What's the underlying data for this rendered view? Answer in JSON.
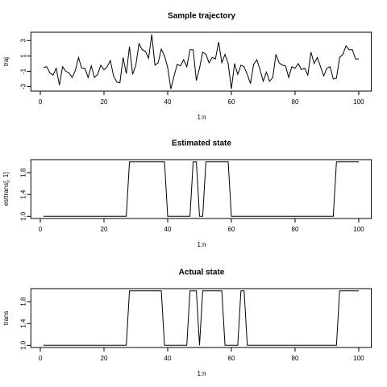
{
  "chart_data": [
    {
      "type": "line",
      "title": "Sample trajectory",
      "x_label": "1:n",
      "y_label": "traj",
      "color": "#000000",
      "x": [
        1,
        2,
        3,
        4,
        5,
        6,
        7,
        8,
        9,
        10,
        11,
        12,
        13,
        14,
        15,
        16,
        17,
        18,
        19,
        20,
        21,
        22,
        23,
        24,
        25,
        26,
        27,
        28,
        29,
        30,
        31,
        32,
        33,
        34,
        35,
        36,
        37,
        38,
        39,
        40,
        41,
        42,
        43,
        44,
        45,
        46,
        47,
        48,
        49,
        50,
        51,
        52,
        53,
        54,
        55,
        56,
        57,
        58,
        59,
        60,
        61,
        62,
        63,
        64,
        65,
        66,
        67,
        68,
        69,
        70,
        71,
        72,
        73,
        74,
        75,
        76,
        77,
        78,
        79,
        80,
        81,
        82,
        83,
        84,
        85,
        86,
        87,
        88,
        89,
        90,
        91,
        92,
        93,
        94,
        95,
        96,
        97,
        98,
        99,
        100
      ],
      "values": [
        -0.5,
        -0.4,
        -1.2,
        -1.5,
        -0.6,
        -2.8,
        -0.4,
        -1.0,
        -1.2,
        -1.8,
        -0.9,
        0.8,
        -0.6,
        -0.6,
        -1.8,
        -0.3,
        -1.8,
        -1.4,
        -0.2,
        -0.8,
        -0.4,
        0.4,
        -1.6,
        -2.4,
        -2.5,
        0.8,
        -1.3,
        2.2,
        -1.4,
        -0.2,
        2.6,
        1.8,
        1.6,
        0.7,
        3.8,
        -0.2,
        0.1,
        1.9,
        1.0,
        -0.5,
        -3.3,
        -1.6,
        -0.1,
        -0.3,
        0.5,
        -0.4,
        1.8,
        1.8,
        -2.2,
        -0.6,
        1.5,
        1.2,
        0.1,
        0.8,
        0.6,
        2.8,
        0.1,
        1.2,
        0.0,
        -3.3,
        0.0,
        -1.4,
        -0.2,
        -0.4,
        -1.4,
        -2.6,
        -0.1,
        0.5,
        -0.8,
        -2.3,
        -1.1,
        -2.3,
        -1.8,
        1.2,
        0.1,
        -0.2,
        -0.3,
        -1.8,
        -0.4,
        -0.6,
        0.0,
        -0.8,
        -0.6,
        -1.5,
        1.5,
        0.0,
        0.8,
        -0.4,
        -1.6,
        -0.6,
        -0.4,
        -2.0,
        -1.9,
        0.8,
        1.2,
        2.3,
        1.8,
        1.8,
        0.6,
        0.6
      ],
      "xlim": [
        -2.96,
        103.96
      ],
      "xticks": [
        0,
        20,
        40,
        60,
        80,
        100
      ],
      "ylim": [
        -3.58,
        4.08
      ],
      "yticks": [
        -3,
        -1,
        1,
        3
      ]
    },
    {
      "type": "line",
      "title": "Estimated state",
      "x_label": "1:n",
      "y_label": "esttrans[, 1]",
      "color": "#000000",
      "x": [
        1,
        2,
        3,
        4,
        5,
        6,
        7,
        8,
        9,
        10,
        11,
        12,
        13,
        14,
        15,
        16,
        17,
        18,
        19,
        20,
        21,
        22,
        23,
        24,
        25,
        26,
        27,
        28,
        29,
        30,
        31,
        32,
        33,
        34,
        35,
        36,
        37,
        38,
        39,
        40,
        41,
        42,
        43,
        44,
        45,
        46,
        47,
        48,
        49,
        50,
        51,
        52,
        53,
        54,
        55,
        56,
        57,
        58,
        59,
        60,
        61,
        62,
        63,
        64,
        65,
        66,
        67,
        68,
        69,
        70,
        71,
        72,
        73,
        74,
        75,
        76,
        77,
        78,
        79,
        80,
        81,
        82,
        83,
        84,
        85,
        86,
        87,
        88,
        89,
        90,
        91,
        92,
        93,
        94,
        95,
        96,
        97,
        98,
        99,
        100
      ],
      "values": [
        1,
        1,
        1,
        1,
        1,
        1,
        1,
        1,
        1,
        1,
        1,
        1,
        1,
        1,
        1,
        1,
        1,
        1,
        1,
        1,
        1,
        1,
        1,
        1,
        1,
        1,
        1,
        2,
        2,
        2,
        2,
        2,
        2,
        2,
        2,
        2,
        2,
        2,
        2,
        1,
        1,
        1,
        1,
        1,
        1,
        1,
        1,
        2,
        2,
        1,
        1,
        2,
        2,
        2,
        2,
        2,
        2,
        2,
        2,
        1,
        1,
        1,
        1,
        1,
        1,
        1,
        1,
        1,
        1,
        1,
        1,
        1,
        1,
        1,
        1,
        1,
        1,
        1,
        1,
        1,
        1,
        1,
        1,
        1,
        1,
        1,
        1,
        1,
        1,
        1,
        1,
        1,
        2,
        2,
        2,
        2,
        2,
        2,
        2,
        2
      ],
      "xlim": [
        -2.96,
        103.96
      ],
      "xticks": [
        0,
        20,
        40,
        60,
        80,
        100
      ],
      "ylim": [
        0.96,
        2.04
      ],
      "yticks": [
        {
          "value": 1,
          "label": "1.0"
        },
        1.4,
        1.8
      ]
    },
    {
      "type": "line",
      "title": "Actual state",
      "x_label": "1:n",
      "y_label": "trans",
      "color": "#000000",
      "x": [
        1,
        2,
        3,
        4,
        5,
        6,
        7,
        8,
        9,
        10,
        11,
        12,
        13,
        14,
        15,
        16,
        17,
        18,
        19,
        20,
        21,
        22,
        23,
        24,
        25,
        26,
        27,
        28,
        29,
        30,
        31,
        32,
        33,
        34,
        35,
        36,
        37,
        38,
        39,
        40,
        41,
        42,
        43,
        44,
        45,
        46,
        47,
        48,
        49,
        50,
        51,
        52,
        53,
        54,
        55,
        56,
        57,
        58,
        59,
        60,
        61,
        62,
        63,
        64,
        65,
        66,
        67,
        68,
        69,
        70,
        71,
        72,
        73,
        74,
        75,
        76,
        77,
        78,
        79,
        80,
        81,
        82,
        83,
        84,
        85,
        86,
        87,
        88,
        89,
        90,
        91,
        92,
        93,
        94,
        95,
        96,
        97,
        98,
        99,
        100
      ],
      "values": [
        1,
        1,
        1,
        1,
        1,
        1,
        1,
        1,
        1,
        1,
        1,
        1,
        1,
        1,
        1,
        1,
        1,
        1,
        1,
        1,
        1,
        1,
        1,
        1,
        1,
        1,
        1,
        2,
        2,
        2,
        2,
        2,
        2,
        2,
        2,
        2,
        2,
        2,
        1,
        1,
        1,
        1,
        1,
        1,
        1,
        1,
        2,
        2,
        2,
        1,
        2,
        2,
        2,
        2,
        2,
        2,
        2,
        1,
        1,
        1,
        1,
        1,
        2,
        2,
        1,
        1,
        1,
        1,
        1,
        1,
        1,
        1,
        1,
        1,
        1,
        1,
        1,
        1,
        1,
        1,
        1,
        1,
        1,
        1,
        1,
        1,
        1,
        1,
        1,
        1,
        1,
        1,
        1,
        2,
        2,
        2,
        2,
        2,
        2,
        2
      ],
      "xlim": [
        -2.96,
        103.96
      ],
      "xticks": [
        0,
        20,
        40,
        60,
        80,
        100
      ],
      "ylim": [
        0.96,
        2.04
      ],
      "yticks": [
        {
          "value": 1,
          "label": "1.0"
        },
        1.4,
        1.8
      ]
    }
  ]
}
